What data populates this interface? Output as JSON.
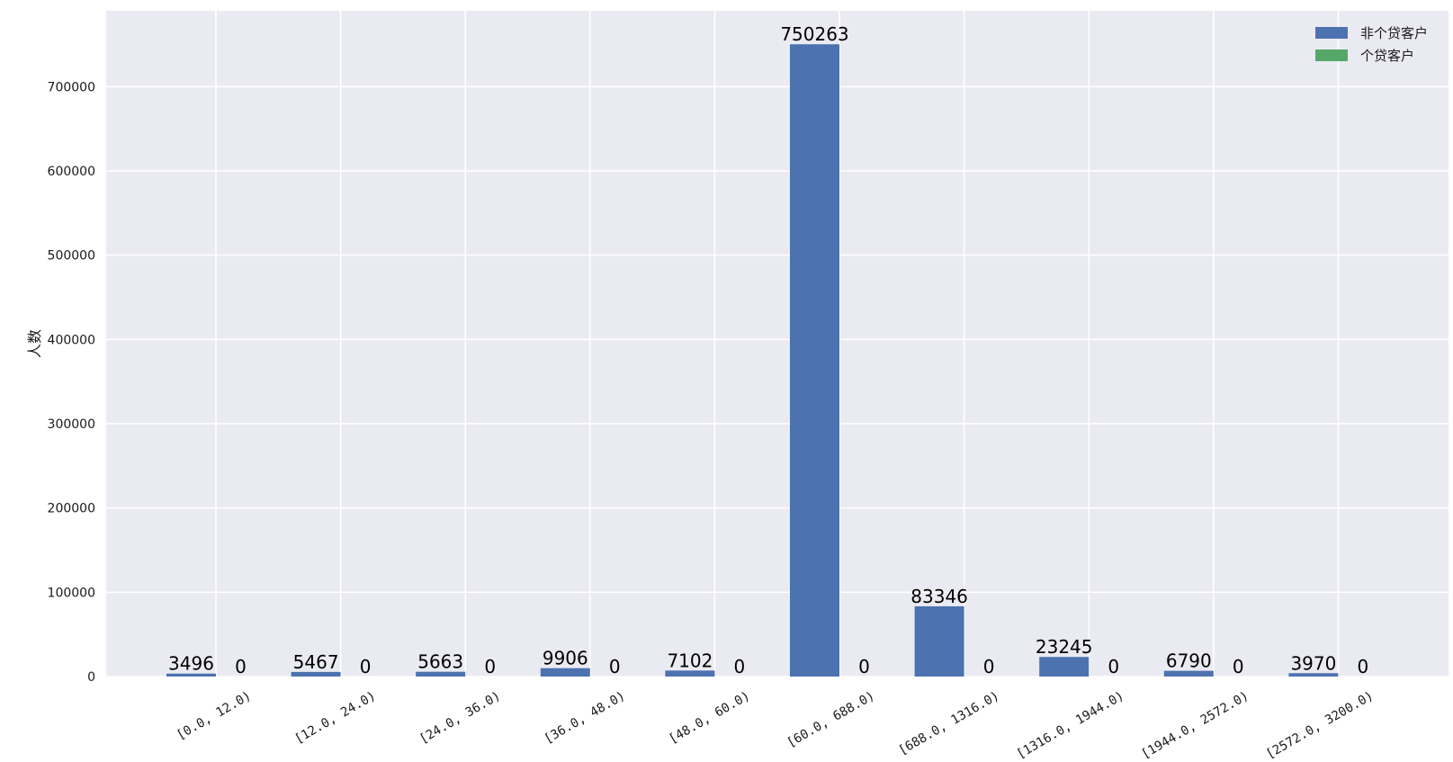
{
  "chart_data": {
    "type": "bar",
    "categories": [
      "[0.0, 12.0)",
      "[12.0, 24.0)",
      "[24.0, 36.0)",
      "[36.0, 48.0)",
      "[48.0, 60.0)",
      "[60.0, 688.0)",
      "[688.0, 1316.0)",
      "[1316.0, 1944.0)",
      "[1944.0, 2572.0)",
      "[2572.0, 3200.0)"
    ],
    "series": [
      {
        "name": "非个贷客户",
        "color": "#4c72b0",
        "values": [
          3496,
          5467,
          5663,
          9906,
          7102,
          750263,
          83346,
          23245,
          6790,
          3970
        ]
      },
      {
        "name": "个贷客户",
        "color": "#55a868",
        "values": [
          0,
          0,
          0,
          0,
          0,
          0,
          0,
          0,
          0,
          0
        ]
      }
    ],
    "ylabel": "人数",
    "ylim": [
      0,
      790000
    ],
    "yticks": [
      0,
      100000,
      200000,
      300000,
      400000,
      500000,
      600000,
      700000
    ],
    "grid": true,
    "legend_position": "top-right",
    "plot_background": "#eaeaf2"
  }
}
